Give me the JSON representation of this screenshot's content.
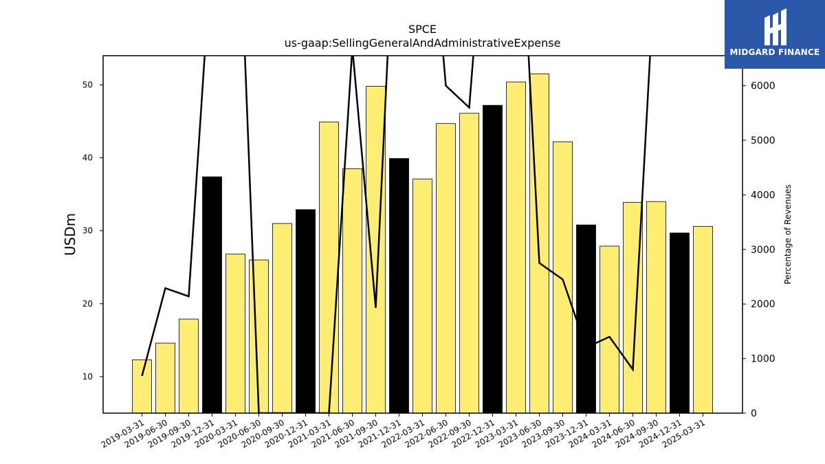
{
  "chart_data": {
    "type": "bar",
    "title": "SPCE",
    "subtitle": "us-gaap:SellingGeneralAndAdministrativeExpense",
    "ylabel": "USDm",
    "y2label": "Percentage of Revenues",
    "ylim": [
      5,
      54
    ],
    "y2lim": [
      0,
      6550
    ],
    "yticks": [
      10,
      20,
      30,
      40,
      50
    ],
    "y2ticks": [
      0,
      1000,
      2000,
      3000,
      4000,
      5000,
      6000
    ],
    "categories": [
      "2019-03-31",
      "2019-06-30",
      "2019-09-30",
      "2019-12-31",
      "2020-03-31",
      "2020-06-30",
      "2020-09-30",
      "2020-12-31",
      "2021-03-31",
      "2021-06-30",
      "2021-09-30",
      "2021-12-31",
      "2022-03-31",
      "2022-06-30",
      "2022-09-30",
      "2022-12-31",
      "2023-03-31",
      "2023-06-30",
      "2023-09-30",
      "2023-12-31",
      "2024-03-31",
      "2024-06-30",
      "2024-09-30",
      "2024-12-31",
      "2025-03-31"
    ],
    "series": [
      {
        "kind": "bar",
        "values": [
          12.3,
          14.6,
          17.9,
          37.4,
          26.8,
          26.0,
          31.0,
          32.9,
          44.9,
          38.5,
          49.8,
          39.9,
          37.1,
          44.7,
          46.1,
          47.2,
          50.4,
          51.5,
          42.2,
          30.8,
          27.9,
          33.9,
          34.0,
          29.7,
          30.6
        ],
        "highlight": [
          false,
          false,
          false,
          true,
          false,
          false,
          false,
          true,
          false,
          false,
          false,
          true,
          false,
          false,
          false,
          true,
          false,
          false,
          false,
          true,
          false,
          false,
          false,
          true,
          false
        ]
      },
      {
        "kind": "line",
        "axis": "right",
        "values": [
          680,
          2290,
          2140,
          8600,
          11000,
          0,
          0,
          0,
          0,
          6700,
          1930,
          11000,
          11000,
          6000,
          5600,
          11000,
          11000,
          2750,
          2450,
          1200,
          1400,
          800,
          8600,
          8600,
          6550
        ]
      }
    ],
    "colors": {
      "bar": "#fded72",
      "bar_highlight": "#000000",
      "line": "#000000",
      "logo_bg": "#2b58a8"
    },
    "grid": false,
    "legend": "none"
  },
  "logo": {
    "text": "MIDGARD FINANCE"
  }
}
